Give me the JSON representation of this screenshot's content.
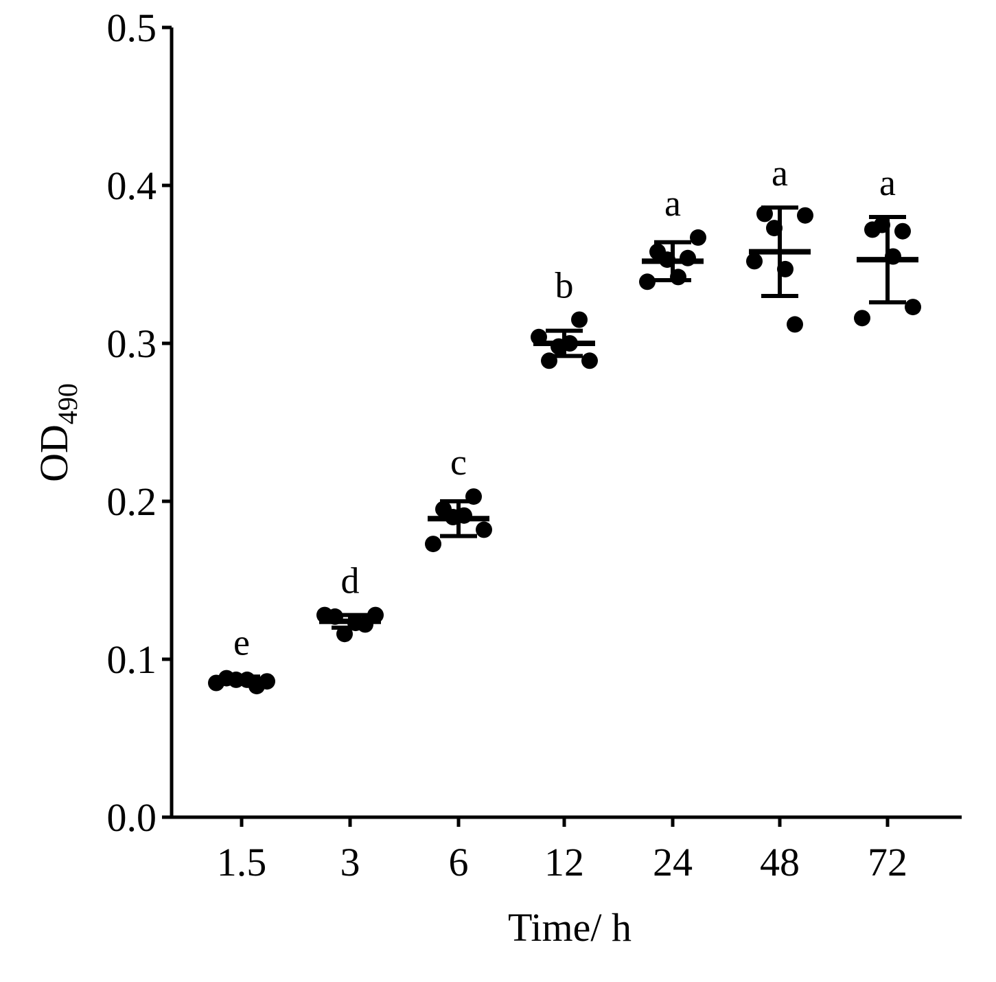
{
  "chart_data": {
    "type": "scatter",
    "subtype": "dot-plot-with-mean-and-sd",
    "title": "",
    "xlabel": "Time/ h",
    "ylabel_main": "OD",
    "ylabel_sub": "490",
    "ylim": [
      0,
      0.5
    ],
    "yticks": [
      "0.0",
      "0.1",
      "0.2",
      "0.3",
      "0.4",
      "0.5"
    ],
    "ytick_values": [
      0.0,
      0.1,
      0.2,
      0.3,
      0.4,
      0.5
    ],
    "categories": [
      "1.5",
      "3",
      "6",
      "12",
      "24",
      "48",
      "72"
    ],
    "significance": [
      "e",
      "d",
      "c",
      "b",
      "a",
      "a",
      "a"
    ],
    "means": [
      0.087,
      0.124,
      0.189,
      0.3,
      0.352,
      0.358,
      0.353
    ],
    "sd": [
      0.002,
      0.004,
      0.011,
      0.008,
      0.012,
      0.028,
      0.027
    ],
    "points": [
      [
        0.085,
        0.088,
        0.087,
        0.087,
        0.083,
        0.086
      ],
      [
        0.128,
        0.127,
        0.116,
        0.123,
        0.122,
        0.128
      ],
      [
        0.173,
        0.195,
        0.19,
        0.191,
        0.203,
        0.182
      ],
      [
        0.304,
        0.289,
        0.298,
        0.3,
        0.315,
        0.289
      ],
      [
        0.339,
        0.358,
        0.353,
        0.342,
        0.354,
        0.367
      ],
      [
        0.352,
        0.382,
        0.373,
        0.347,
        0.312,
        0.381
      ],
      [
        0.316,
        0.372,
        0.375,
        0.355,
        0.371,
        0.323
      ]
    ],
    "grid": false,
    "legend": "none",
    "marker_color": "#000000"
  }
}
